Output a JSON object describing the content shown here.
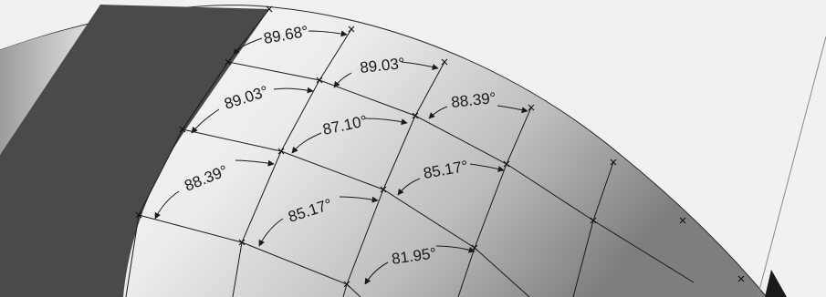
{
  "diagram": {
    "angle_labels": [
      {
        "id": "a1",
        "text": "89.68°"
      },
      {
        "id": "a2",
        "text": "89.03°"
      },
      {
        "id": "a3",
        "text": "89.03°"
      },
      {
        "id": "a4",
        "text": "88.39°"
      },
      {
        "id": "a5",
        "text": "87.10°"
      },
      {
        "id": "a6",
        "text": "88.39°"
      },
      {
        "id": "a7",
        "text": "85.17°"
      },
      {
        "id": "a8",
        "text": "85.17°"
      },
      {
        "id": "a9",
        "text": "81.95°"
      }
    ],
    "colors": {
      "sphere_band": "#4a4a4a",
      "sphere_light": "#f5f5f5",
      "sphere_shadow": "#9a9a9a",
      "plane": "#f0f0f0",
      "lines": "#1a1a1a"
    }
  }
}
